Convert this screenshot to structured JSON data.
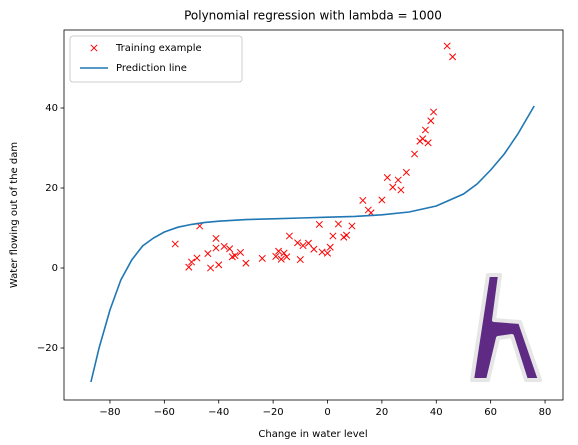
{
  "chart_data": {
    "type": "scatter",
    "title": "Polynomial regression with lambda = 1000",
    "x_label": "Change in water level",
    "y_label": "Water flowing out of the dam",
    "xlim": [
      -96.9,
      86.6
    ],
    "ylim": [
      -33,
      59.5
    ],
    "xticks": [
      {
        "value": -80,
        "label": "−80"
      },
      {
        "value": -60,
        "label": "−60"
      },
      {
        "value": -40,
        "label": "−40"
      },
      {
        "value": -20,
        "label": "−20"
      },
      0,
      20,
      40,
      60,
      80
    ],
    "yticks": [
      {
        "value": -20,
        "label": "−20"
      },
      0,
      20,
      40
    ],
    "grid": false,
    "legend": "upper left",
    "series": [
      {
        "name": "Training example",
        "type": "scatter",
        "color": "#ff0000",
        "x": [
          -56,
          -51,
          -50,
          -48,
          -47,
          -44,
          -43,
          -41,
          -41,
          -40,
          -38,
          -36,
          -35,
          -34,
          -32,
          -30,
          -24,
          -19,
          -18,
          -17,
          -16,
          -15,
          -14,
          -11,
          -10,
          -9,
          -7,
          -5,
          -3,
          -2,
          0,
          1,
          2,
          4,
          6,
          7,
          9,
          13,
          15,
          16,
          20,
          22,
          24,
          26,
          27,
          29,
          32,
          34,
          35,
          36,
          37,
          38,
          39,
          44,
          46
        ],
        "values": [
          6,
          0.2,
          1.5,
          2.5,
          10.5,
          3.6,
          0,
          7.4,
          5,
          0.8,
          5.4,
          4.8,
          2.8,
          3.1,
          3.9,
          1.2,
          2.4,
          2.9,
          4.2,
          2.2,
          3.7,
          2.8,
          8,
          6.3,
          2.1,
          5.6,
          6.2,
          4.7,
          10.9,
          4,
          3.7,
          5.2,
          8,
          11,
          7.7,
          8.2,
          10.5,
          16.9,
          14.5,
          13.8,
          17,
          22.6,
          20.2,
          22,
          19.5,
          23.9,
          28.5,
          31.7,
          32.3,
          34.5,
          31.3,
          36.8,
          39,
          55.5,
          52.8
        ]
      },
      {
        "name": "Prediction line",
        "type": "line",
        "color": "#1f77b4",
        "x": [
          -87,
          -84,
          -80,
          -76,
          -72,
          -68,
          -64,
          -60,
          -55,
          -50,
          -45,
          -40,
          -30,
          -20,
          -10,
          0,
          10,
          20,
          30,
          40,
          45,
          50,
          55,
          60,
          65,
          70,
          73,
          76
        ],
        "values": [
          -28.5,
          -20,
          -10.5,
          -3,
          2,
          5.5,
          7.5,
          9,
          10.2,
          10.9,
          11.4,
          11.7,
          12.1,
          12.3,
          12.5,
          12.7,
          12.9,
          13.3,
          14,
          15.5,
          17,
          18.5,
          21,
          24.5,
          28.5,
          33.5,
          37,
          40.5
        ]
      }
    ]
  }
}
